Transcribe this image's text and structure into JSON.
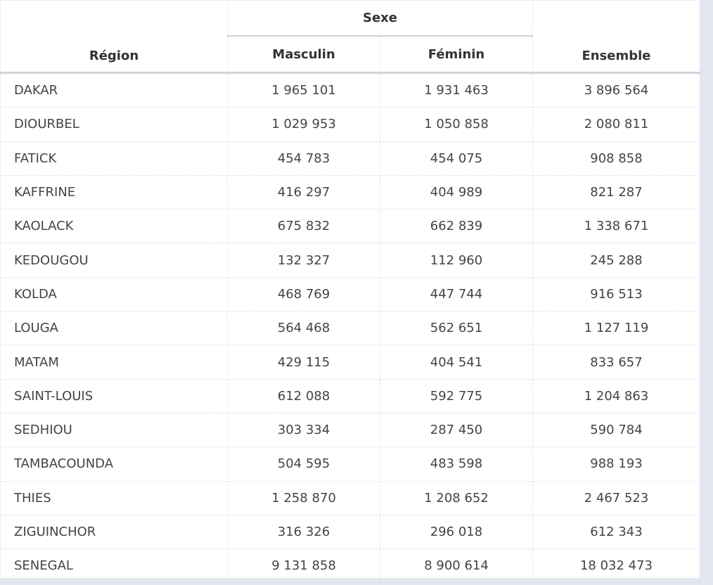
{
  "headers": {
    "region": "Région",
    "sexe": "Sexe",
    "masculin": "Masculin",
    "feminin": "Féminin",
    "ensemble": "Ensemble"
  },
  "rows": [
    {
      "region": "DAKAR",
      "masculin": "1 965 101",
      "feminin": "1 931 463",
      "ensemble": "3 896 564"
    },
    {
      "region": "DIOURBEL",
      "masculin": "1 029 953",
      "feminin": "1 050 858",
      "ensemble": "2 080 811"
    },
    {
      "region": "FATICK",
      "masculin": "454 783",
      "feminin": "454 075",
      "ensemble": "908 858"
    },
    {
      "region": "KAFFRINE",
      "masculin": "416 297",
      "feminin": "404 989",
      "ensemble": "821 287"
    },
    {
      "region": "KAOLACK",
      "masculin": "675 832",
      "feminin": "662 839",
      "ensemble": "1 338 671"
    },
    {
      "region": "KEDOUGOU",
      "masculin": "132 327",
      "feminin": "112 960",
      "ensemble": "245 288"
    },
    {
      "region": "KOLDA",
      "masculin": "468 769",
      "feminin": "447 744",
      "ensemble": "916 513"
    },
    {
      "region": "LOUGA",
      "masculin": "564 468",
      "feminin": "562 651",
      "ensemble": "1 127 119"
    },
    {
      "region": "MATAM",
      "masculin": "429 115",
      "feminin": "404 541",
      "ensemble": "833 657"
    },
    {
      "region": "SAINT-LOUIS",
      "masculin": "612 088",
      "feminin": "592 775",
      "ensemble": "1 204 863"
    },
    {
      "region": "SEDHIOU",
      "masculin": "303 334",
      "feminin": "287 450",
      "ensemble": "590 784"
    },
    {
      "region": "TAMBACOUNDA",
      "masculin": "504 595",
      "feminin": "483 598",
      "ensemble": "988 193"
    },
    {
      "region": "THIES",
      "masculin": "1 258 870",
      "feminin": "1 208 652",
      "ensemble": "2 467 523"
    },
    {
      "region": "ZIGUINCHOR",
      "masculin": "316 326",
      "feminin": "296 018",
      "ensemble": "612 343"
    },
    {
      "region": "SENEGAL",
      "masculin": "9 131 858",
      "feminin": "8 900 614",
      "ensemble": "18 032 473"
    }
  ]
}
